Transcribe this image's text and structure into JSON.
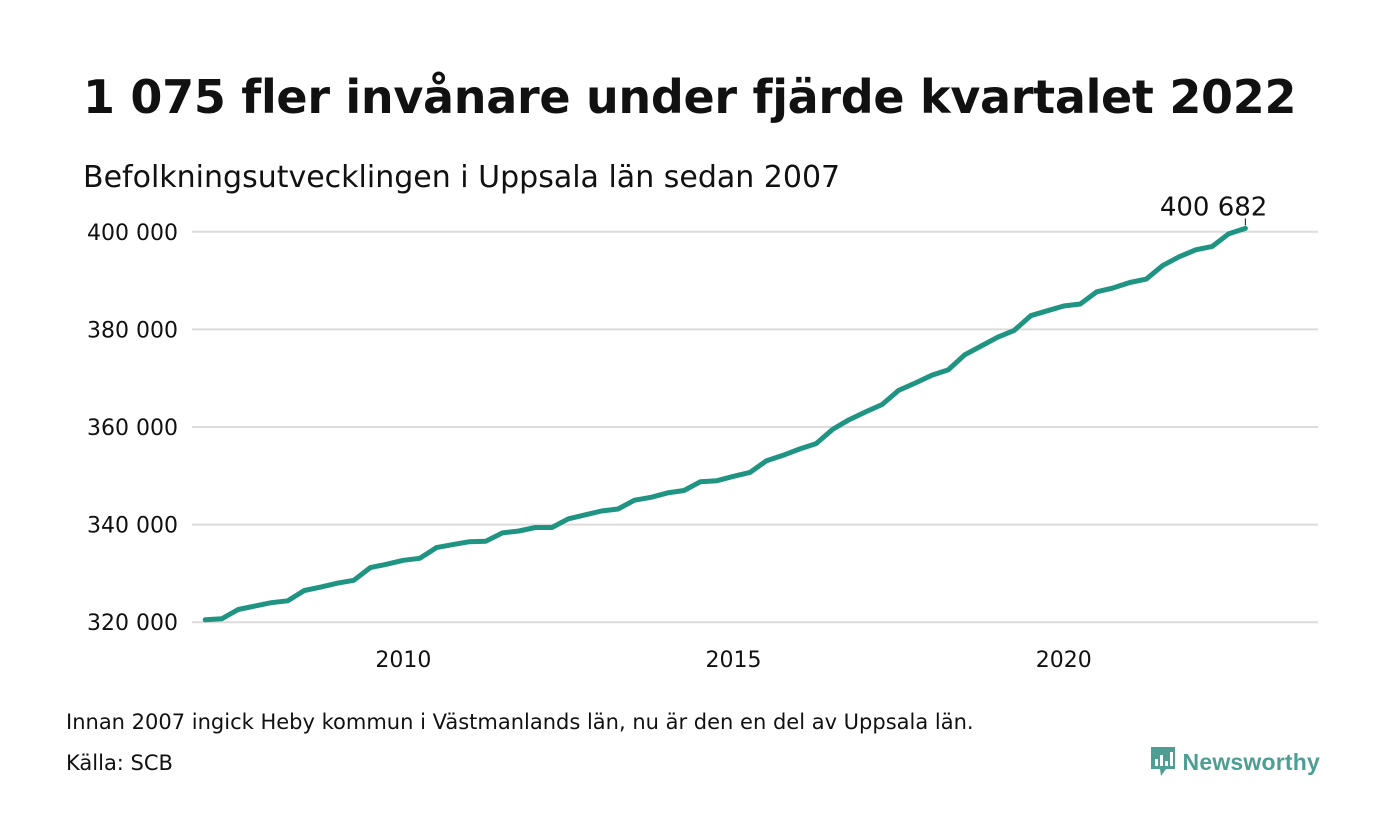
{
  "header": {
    "title": "1 075 fler invånare under fjärde kvartalet 2022",
    "subtitle": "Befolkningsutvecklingen i Uppsala län sedan 2007"
  },
  "footer": {
    "note": "Innan 2007 ingick Heby kommun i Västmanlands län, nu är den en del av Uppsala län.",
    "source": "Källa: SCB",
    "brand": "Newsworthy",
    "brand_color": "#4e9e93"
  },
  "chart_data": {
    "type": "line",
    "title": "1 075 fler invånare under fjärde kvartalet 2022",
    "subtitle": "Befolkningsutvecklingen i Uppsala län sedan 2007",
    "xlabel": "",
    "ylabel": "",
    "line_color": "#1f9483",
    "grid": true,
    "xlim": [
      2006.8,
      2023.85
    ],
    "ylim": [
      318000,
      402000
    ],
    "x_ticks": [
      2010,
      2015,
      2020
    ],
    "x_tick_labels": [
      "2010",
      "2015",
      "2020"
    ],
    "y_ticks": [
      320000,
      340000,
      360000,
      380000,
      400000
    ],
    "y_tick_labels": [
      "320 000",
      "340 000",
      "360 000",
      "380 000",
      "400 000"
    ],
    "last_value_label": "400 682",
    "series": [
      {
        "x": [
          2007.0,
          2007.25,
          2007.5,
          2007.75,
          2008.0,
          2008.25,
          2008.5,
          2008.75,
          2009.0,
          2009.25,
          2009.5,
          2009.75,
          2010.0,
          2010.25,
          2010.5,
          2010.75,
          2011.0,
          2011.25,
          2011.5,
          2011.75,
          2012.0,
          2012.25,
          2012.5,
          2012.75,
          2013.0,
          2013.25,
          2013.5,
          2013.75,
          2014.0,
          2014.25,
          2014.5,
          2014.75,
          2015.0,
          2015.25,
          2015.5,
          2015.75,
          2016.0,
          2016.25,
          2016.5,
          2016.75,
          2017.0,
          2017.25,
          2017.5,
          2017.75,
          2018.0,
          2018.25,
          2018.5,
          2018.75,
          2019.0,
          2019.25,
          2019.5,
          2019.75,
          2020.0,
          2020.25,
          2020.5,
          2020.75,
          2021.0,
          2021.25,
          2021.5,
          2021.75,
          2022.0,
          2022.25,
          2022.5,
          2022.75
        ],
        "values": [
          320500,
          320700,
          322600,
          323300,
          324000,
          324400,
          326500,
          327200,
          328000,
          328600,
          331200,
          331900,
          332700,
          333100,
          335300,
          335900,
          336500,
          336600,
          338300,
          338700,
          339400,
          339400,
          341200,
          342000,
          342800,
          343200,
          345000,
          345600,
          346500,
          347000,
          348800,
          349000,
          349900,
          350700,
          353100,
          354200,
          355500,
          356600,
          359500,
          361500,
          363100,
          364600,
          367500,
          369000,
          370600,
          371700,
          374800,
          376600,
          378400,
          379800,
          382800,
          383800,
          384800,
          385200,
          387700,
          388500,
          389600,
          390300,
          393100,
          394900,
          396300,
          397000,
          399600,
          400682
        ]
      }
    ]
  }
}
